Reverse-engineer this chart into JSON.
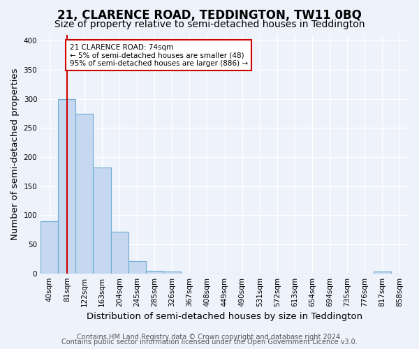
{
  "title": "21, CLARENCE ROAD, TEDDINGTON, TW11 0BQ",
  "subtitle": "Size of property relative to semi-detached houses in Teddington",
  "xlabel": "Distribution of semi-detached houses by size in Teddington",
  "ylabel": "Number of semi-detached properties",
  "footnote1": "Contains HM Land Registry data © Crown copyright and database right 2024.",
  "footnote2": "Contains public sector information licensed under the Open Government Licence v3.0.",
  "bin_labels": [
    "40sqm",
    "81sqm",
    "122sqm",
    "163sqm",
    "204sqm",
    "245sqm",
    "285sqm",
    "326sqm",
    "367sqm",
    "408sqm",
    "449sqm",
    "490sqm",
    "531sqm",
    "572sqm",
    "613sqm",
    "654sqm",
    "694sqm",
    "735sqm",
    "776sqm",
    "817sqm",
    "858sqm"
  ],
  "bar_heights": [
    90,
    300,
    275,
    182,
    72,
    21,
    5,
    3,
    0,
    0,
    0,
    0,
    0,
    0,
    0,
    0,
    0,
    0,
    0,
    3,
    0
  ],
  "bar_color": "#c5d8f0",
  "bar_edge_color": "#6aaad4",
  "vline_x": 1,
  "vline_color": "#cc0000",
  "annotation_text": "21 CLARENCE ROAD: 74sqm\n← 5% of semi-detached houses are smaller (48)\n95% of semi-detached houses are larger (886) →",
  "annotation_box_color": "#ffffff",
  "annotation_box_edge": "#cc0000",
  "ylim": [
    0,
    410
  ],
  "yticks": [
    0,
    50,
    100,
    150,
    200,
    250,
    300,
    350,
    400
  ],
  "background_color": "#eef2fa",
  "grid_color": "#ffffff",
  "title_fontsize": 12,
  "subtitle_fontsize": 10,
  "axis_label_fontsize": 9.5,
  "tick_fontsize": 7.5,
  "footnote_fontsize": 7
}
